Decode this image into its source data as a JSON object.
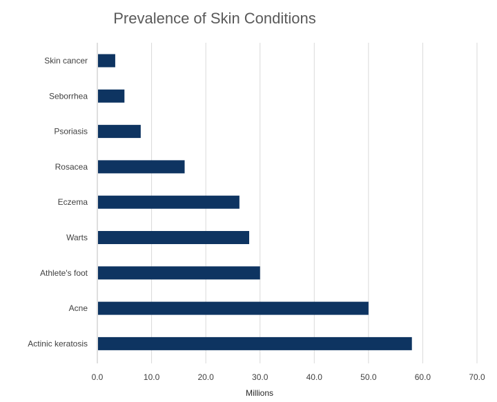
{
  "chart_data": {
    "type": "bar",
    "orientation": "horizontal",
    "title": "Prevalence of Skin Conditions",
    "xlabel": "Millions",
    "ylabel": "",
    "categories": [
      "Skin cancer",
      "Seborrhea",
      "Psoriasis",
      "Rosacea",
      "Eczema",
      "Warts",
      "Athlete's foot",
      "Acne",
      "Actinic keratosis"
    ],
    "values": [
      3.3,
      5.0,
      8.0,
      16.1,
      26.2,
      28.0,
      30.0,
      50.0,
      58.0
    ],
    "xlim": [
      0,
      70
    ],
    "x_ticks": [
      "0.0",
      "10.0",
      "20.0",
      "30.0",
      "40.0",
      "50.0",
      "60.0",
      "70.0"
    ],
    "grid": "vertical",
    "legend": "none",
    "bar_color": "#0e3461"
  }
}
